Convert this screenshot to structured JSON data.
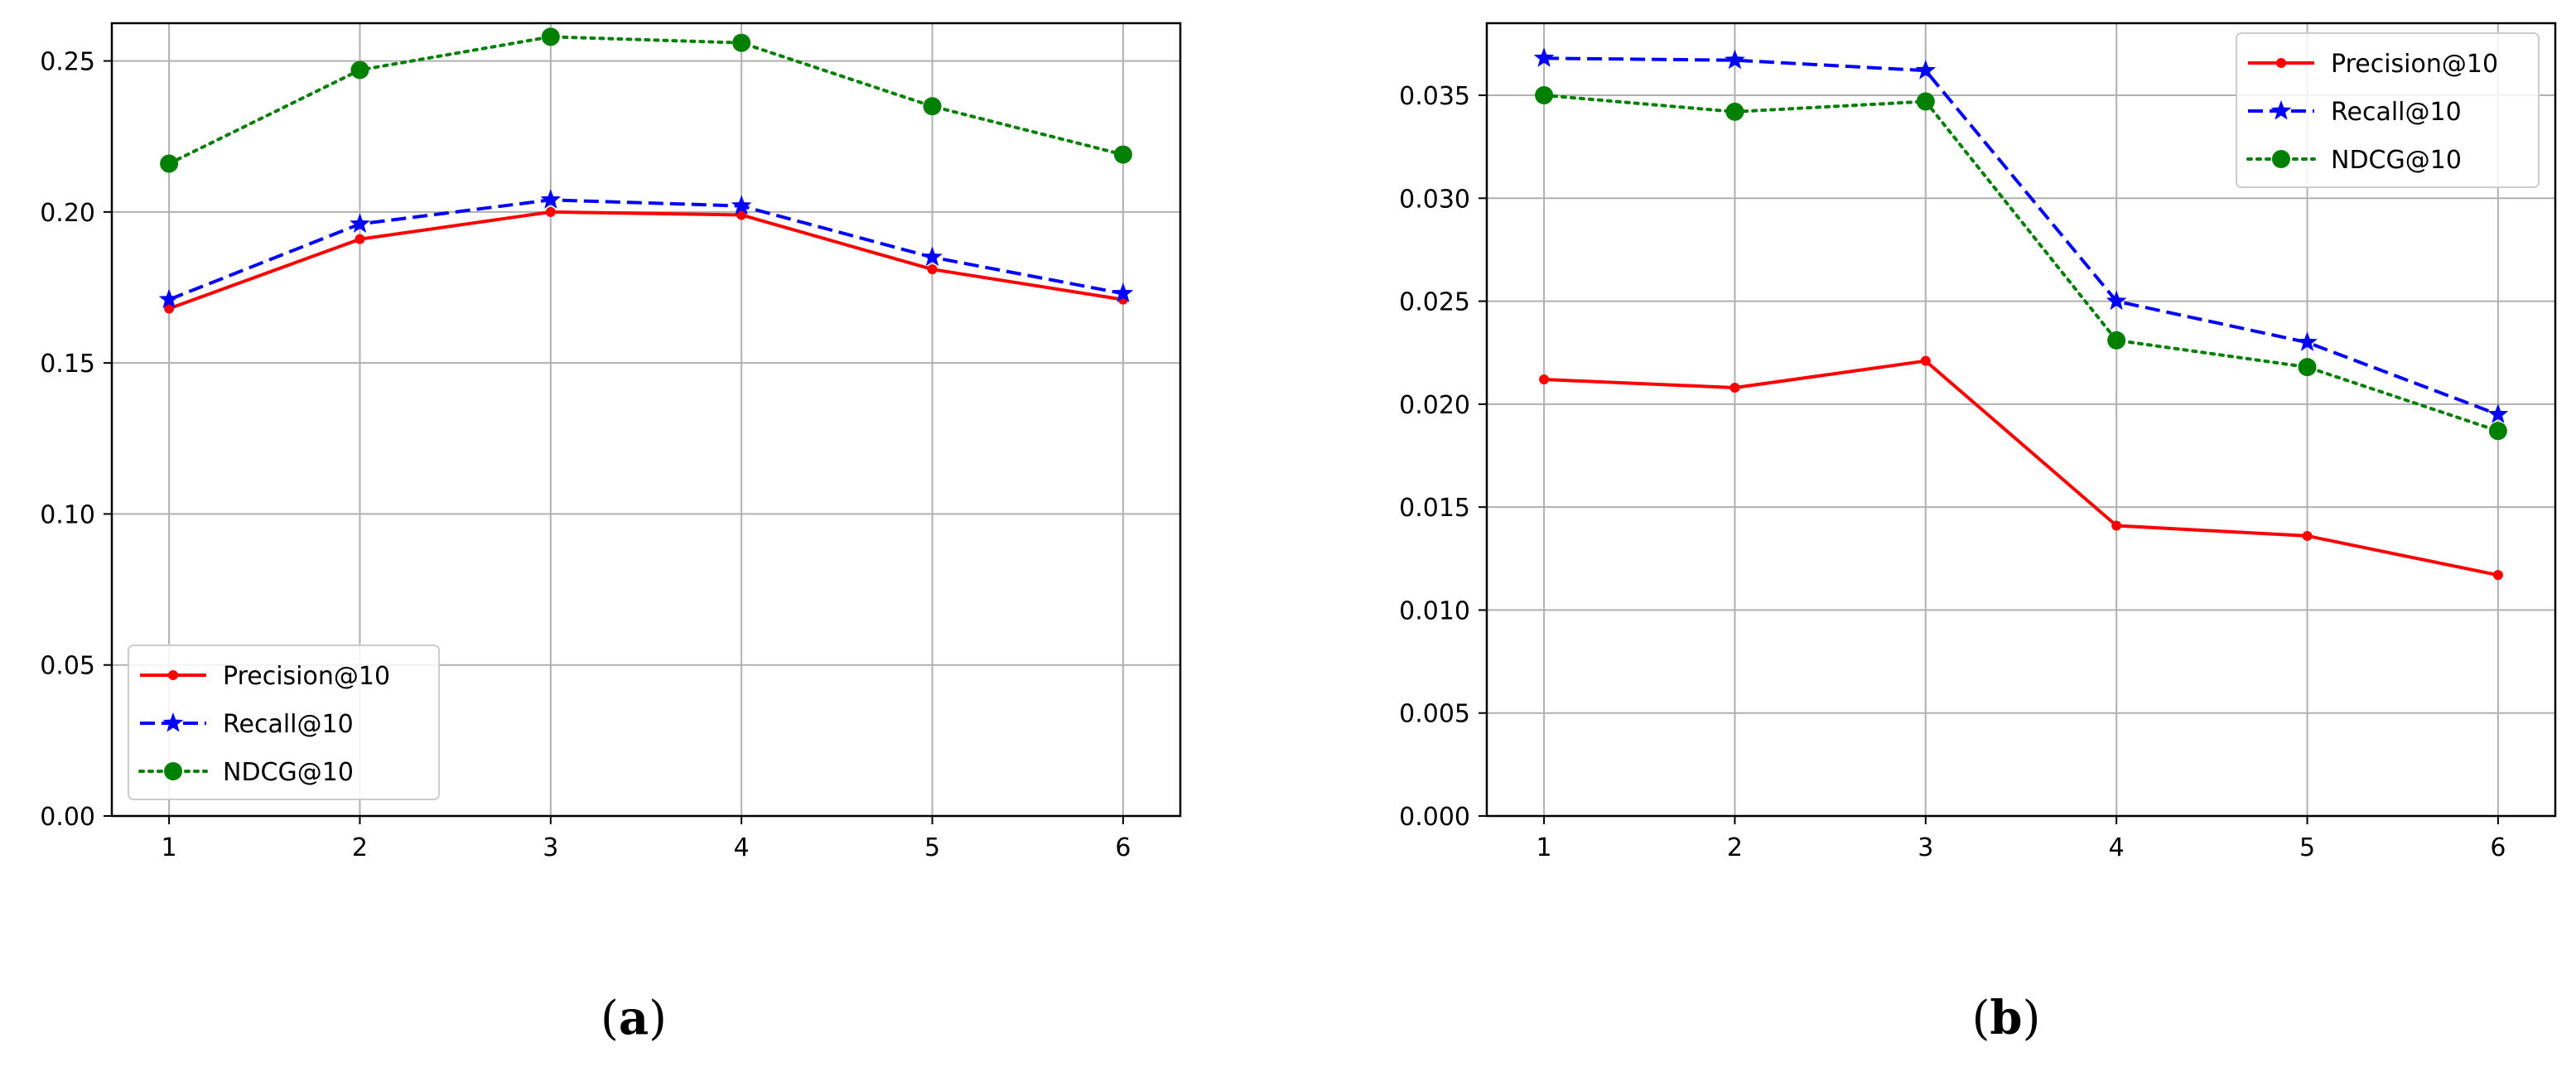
{
  "colors": {
    "precision": "#ff0000",
    "recall": "#0000ff",
    "ndcg": "#008000",
    "grid": "#b0b0b0",
    "axes": "#000000"
  },
  "chart_data": [
    {
      "type": "line",
      "panel_label": {
        "open": "(",
        "letter": "a",
        "close": ")"
      },
      "x": [
        1,
        2,
        3,
        4,
        5,
        6
      ],
      "xlim": [
        0.7,
        6.3
      ],
      "ylim": [
        0,
        0.2625
      ],
      "yticks": [
        "0.00",
        "0.05",
        "0.10",
        "0.15",
        "0.20",
        "0.25"
      ],
      "ytick_values": [
        0,
        0.05,
        0.1,
        0.15,
        0.2,
        0.25
      ],
      "xticks": [
        "1",
        "2",
        "3",
        "4",
        "5",
        "6"
      ],
      "grid": true,
      "legend_position": "lower-left",
      "series": [
        {
          "name": "Precision@10",
          "color": "#ff0000",
          "linestyle": "solid",
          "marker": "dot",
          "values": [
            0.168,
            0.191,
            0.2,
            0.199,
            0.181,
            0.171
          ]
        },
        {
          "name": "Recall@10",
          "color": "#0000ff",
          "linestyle": "dashed",
          "marker": "star",
          "values": [
            0.171,
            0.196,
            0.204,
            0.202,
            0.185,
            0.173
          ]
        },
        {
          "name": "NDCG@10",
          "color": "#008000",
          "linestyle": "dotted",
          "marker": "circle",
          "values": [
            0.216,
            0.247,
            0.258,
            0.256,
            0.235,
            0.219
          ]
        }
      ]
    },
    {
      "type": "line",
      "panel_label": {
        "open": "(",
        "letter": "b",
        "close": ")"
      },
      "x": [
        1,
        2,
        3,
        4,
        5,
        6
      ],
      "xlim": [
        0.7,
        6.3
      ],
      "ylim": [
        0,
        0.0385
      ],
      "yticks": [
        "0.000",
        "0.005",
        "0.010",
        "0.015",
        "0.020",
        "0.025",
        "0.030",
        "0.035"
      ],
      "ytick_values": [
        0,
        0.005,
        0.01,
        0.015,
        0.02,
        0.025,
        0.03,
        0.035
      ],
      "xticks": [
        "1",
        "2",
        "3",
        "4",
        "5",
        "6"
      ],
      "grid": true,
      "legend_position": "top-right",
      "series": [
        {
          "name": "Precision@10",
          "color": "#ff0000",
          "linestyle": "solid",
          "marker": "dot",
          "values": [
            0.0212,
            0.0208,
            0.0221,
            0.0141,
            0.0136,
            0.0117
          ]
        },
        {
          "name": "Recall@10",
          "color": "#0000ff",
          "linestyle": "dashed",
          "marker": "star",
          "values": [
            0.0368,
            0.0367,
            0.0362,
            0.025,
            0.023,
            0.0195
          ]
        },
        {
          "name": "NDCG@10",
          "color": "#008000",
          "linestyle": "dotted",
          "marker": "circle",
          "values": [
            0.035,
            0.0342,
            0.0347,
            0.0231,
            0.0218,
            0.0187
          ]
        }
      ]
    }
  ]
}
